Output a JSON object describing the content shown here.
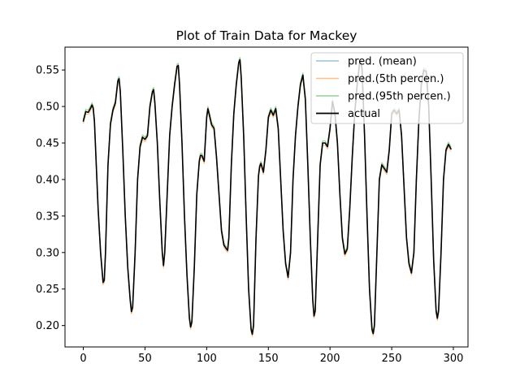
{
  "chart_data": {
    "type": "line",
    "title": "Plot of Train Data for Mackey",
    "xlabel": "",
    "ylabel": "",
    "xlim": [
      -14.85,
      311.85
    ],
    "ylim": [
      0.1707,
      0.5813
    ],
    "xticks": [
      0,
      50,
      100,
      150,
      200,
      250,
      300
    ],
    "yticks": [
      0.2,
      0.25,
      0.3,
      0.35,
      0.4,
      0.45,
      0.5,
      0.55
    ],
    "xtick_labels": [
      "0",
      "50",
      "100",
      "150",
      "200",
      "250",
      "300"
    ],
    "ytick_labels": [
      "0.20",
      "0.25",
      "0.30",
      "0.35",
      "0.40",
      "0.45",
      "0.50",
      "0.55"
    ],
    "legend_position": "top-right",
    "colors": {
      "mean": "#1f77b4",
      "p5": "#ff7f0e",
      "p95": "#2ca02c",
      "actual": "#000000"
    },
    "series": [
      {
        "name": "pred. (mean)",
        "key": "mean",
        "alpha": 0.45,
        "offset": 0.0,
        "width": 1.2
      },
      {
        "name": "pred.(5th percen.)",
        "key": "p5",
        "alpha": 0.5,
        "offset": -0.003,
        "width": 1.2
      },
      {
        "name": "pred.(95th percen.)",
        "key": "p95",
        "alpha": 0.5,
        "offset": 0.003,
        "width": 1.2
      },
      {
        "name": "actual",
        "key": "actual",
        "alpha": 1.0,
        "offset": 0.0,
        "width": 1.6
      }
    ],
    "actual_points": [
      [
        0,
        0.48
      ],
      [
        2,
        0.493
      ],
      [
        4,
        0.492
      ],
      [
        6,
        0.498
      ],
      [
        7,
        0.502
      ],
      [
        8,
        0.498
      ],
      [
        9,
        0.48
      ],
      [
        10,
        0.44
      ],
      [
        12,
        0.36
      ],
      [
        14,
        0.3
      ],
      [
        16,
        0.259
      ],
      [
        17,
        0.262
      ],
      [
        18,
        0.3
      ],
      [
        20,
        0.42
      ],
      [
        22,
        0.476
      ],
      [
        24,
        0.495
      ],
      [
        26,
        0.505
      ],
      [
        28,
        0.535
      ],
      [
        29,
        0.538
      ],
      [
        30,
        0.52
      ],
      [
        32,
        0.44
      ],
      [
        34,
        0.35
      ],
      [
        36,
        0.28
      ],
      [
        38,
        0.235
      ],
      [
        39,
        0.219
      ],
      [
        40,
        0.225
      ],
      [
        42,
        0.3
      ],
      [
        44,
        0.4
      ],
      [
        46,
        0.445
      ],
      [
        48,
        0.458
      ],
      [
        50,
        0.455
      ],
      [
        52,
        0.46
      ],
      [
        54,
        0.5
      ],
      [
        56,
        0.52
      ],
      [
        57,
        0.523
      ],
      [
        58,
        0.505
      ],
      [
        60,
        0.45
      ],
      [
        62,
        0.37
      ],
      [
        64,
        0.3
      ],
      [
        65,
        0.282
      ],
      [
        66,
        0.3
      ],
      [
        68,
        0.38
      ],
      [
        70,
        0.46
      ],
      [
        72,
        0.5
      ],
      [
        74,
        0.53
      ],
      [
        76,
        0.555
      ],
      [
        77,
        0.556
      ],
      [
        78,
        0.53
      ],
      [
        80,
        0.45
      ],
      [
        82,
        0.35
      ],
      [
        84,
        0.27
      ],
      [
        86,
        0.21
      ],
      [
        87,
        0.198
      ],
      [
        88,
        0.205
      ],
      [
        90,
        0.28
      ],
      [
        92,
        0.38
      ],
      [
        94,
        0.425
      ],
      [
        95,
        0.433
      ],
      [
        96,
        0.433
      ],
      [
        98,
        0.425
      ],
      [
        100,
        0.485
      ],
      [
        101,
        0.497
      ],
      [
        102,
        0.49
      ],
      [
        104,
        0.475
      ],
      [
        106,
        0.47
      ],
      [
        108,
        0.43
      ],
      [
        110,
        0.38
      ],
      [
        112,
        0.33
      ],
      [
        114,
        0.31
      ],
      [
        116,
        0.305
      ],
      [
        117,
        0.303
      ],
      [
        118,
        0.32
      ],
      [
        120,
        0.42
      ],
      [
        122,
        0.49
      ],
      [
        124,
        0.53
      ],
      [
        126,
        0.56
      ],
      [
        127,
        0.564
      ],
      [
        128,
        0.54
      ],
      [
        130,
        0.46
      ],
      [
        132,
        0.35
      ],
      [
        134,
        0.25
      ],
      [
        136,
        0.195
      ],
      [
        137,
        0.188
      ],
      [
        138,
        0.2
      ],
      [
        140,
        0.32
      ],
      [
        142,
        0.405
      ],
      [
        143,
        0.418
      ],
      [
        144,
        0.422
      ],
      [
        146,
        0.41
      ],
      [
        148,
        0.44
      ],
      [
        150,
        0.485
      ],
      [
        152,
        0.495
      ],
      [
        154,
        0.488
      ],
      [
        156,
        0.497
      ],
      [
        158,
        0.47
      ],
      [
        160,
        0.4
      ],
      [
        162,
        0.33
      ],
      [
        164,
        0.285
      ],
      [
        166,
        0.266
      ],
      [
        168,
        0.3
      ],
      [
        170,
        0.4
      ],
      [
        172,
        0.46
      ],
      [
        174,
        0.5
      ],
      [
        176,
        0.53
      ],
      [
        178,
        0.543
      ],
      [
        180,
        0.51
      ],
      [
        182,
        0.42
      ],
      [
        184,
        0.32
      ],
      [
        186,
        0.235
      ],
      [
        187,
        0.213
      ],
      [
        188,
        0.22
      ],
      [
        190,
        0.32
      ],
      [
        192,
        0.42
      ],
      [
        194,
        0.45
      ],
      [
        196,
        0.45
      ],
      [
        198,
        0.445
      ],
      [
        200,
        0.47
      ],
      [
        202,
        0.507
      ],
      [
        204,
        0.49
      ],
      [
        206,
        0.45
      ],
      [
        208,
        0.38
      ],
      [
        210,
        0.32
      ],
      [
        212,
        0.298
      ],
      [
        214,
        0.305
      ],
      [
        216,
        0.36
      ],
      [
        218,
        0.43
      ],
      [
        220,
        0.49
      ],
      [
        222,
        0.53
      ],
      [
        224,
        0.56
      ],
      [
        225,
        0.562
      ],
      [
        226,
        0.55
      ],
      [
        228,
        0.46
      ],
      [
        230,
        0.35
      ],
      [
        232,
        0.25
      ],
      [
        234,
        0.195
      ],
      [
        235,
        0.189
      ],
      [
        236,
        0.2
      ],
      [
        238,
        0.3
      ],
      [
        240,
        0.4
      ],
      [
        242,
        0.42
      ],
      [
        244,
        0.415
      ],
      [
        246,
        0.41
      ],
      [
        248,
        0.44
      ],
      [
        250,
        0.49
      ],
      [
        252,
        0.495
      ],
      [
        254,
        0.49
      ],
      [
        256,
        0.495
      ],
      [
        258,
        0.46
      ],
      [
        260,
        0.39
      ],
      [
        262,
        0.32
      ],
      [
        264,
        0.285
      ],
      [
        266,
        0.272
      ],
      [
        268,
        0.3
      ],
      [
        270,
        0.4
      ],
      [
        272,
        0.48
      ],
      [
        274,
        0.53
      ],
      [
        276,
        0.55
      ],
      [
        278,
        0.548
      ],
      [
        280,
        0.5
      ],
      [
        282,
        0.4
      ],
      [
        284,
        0.29
      ],
      [
        286,
        0.22
      ],
      [
        287,
        0.21
      ],
      [
        288,
        0.22
      ],
      [
        290,
        0.3
      ],
      [
        292,
        0.4
      ],
      [
        294,
        0.44
      ],
      [
        296,
        0.448
      ],
      [
        298,
        0.442
      ]
    ]
  }
}
